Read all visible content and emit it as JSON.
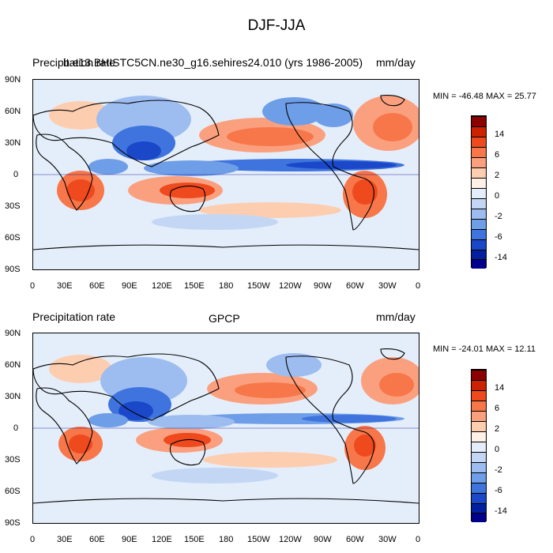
{
  "figure": {
    "title": "DJF-JJA"
  },
  "axes": {
    "lat_ticks": [
      "90N",
      "60N",
      "30N",
      "0",
      "30S",
      "60S",
      "90S"
    ],
    "lon_ticks": [
      "0",
      "30E",
      "60E",
      "90E",
      "120E",
      "150E",
      "180",
      "150W",
      "120W",
      "90W",
      "60W",
      "30W",
      "0"
    ]
  },
  "colorbar": {
    "labels": [
      "14",
      "6",
      "2",
      "0",
      "-2",
      "-6",
      "-14"
    ],
    "colors": [
      "#8b0000",
      "#cc2200",
      "#ee4a1e",
      "#f7774a",
      "#fba07f",
      "#fdcdb0",
      "#fff1e6",
      "#e4eefa",
      "#c3d7f5",
      "#9dbdf0",
      "#6f9ee8",
      "#3f74de",
      "#1a48c9",
      "#0020a0",
      "#00008a"
    ]
  },
  "panels": [
    {
      "id": "model",
      "left_label": "Precipitation rate",
      "center_label": "b.e13.BHISTC5CN.ne30_g16.sehires24.010 (yrs 1986-2005)",
      "units": "mm/day",
      "minmax": "MIN = -46.48 MAX =  25.77"
    },
    {
      "id": "obs",
      "left_label": "Precipitation rate",
      "center_label": "GPCP",
      "units": "mm/day",
      "minmax": "MIN = -24.01 MAX =  12.11"
    }
  ]
}
